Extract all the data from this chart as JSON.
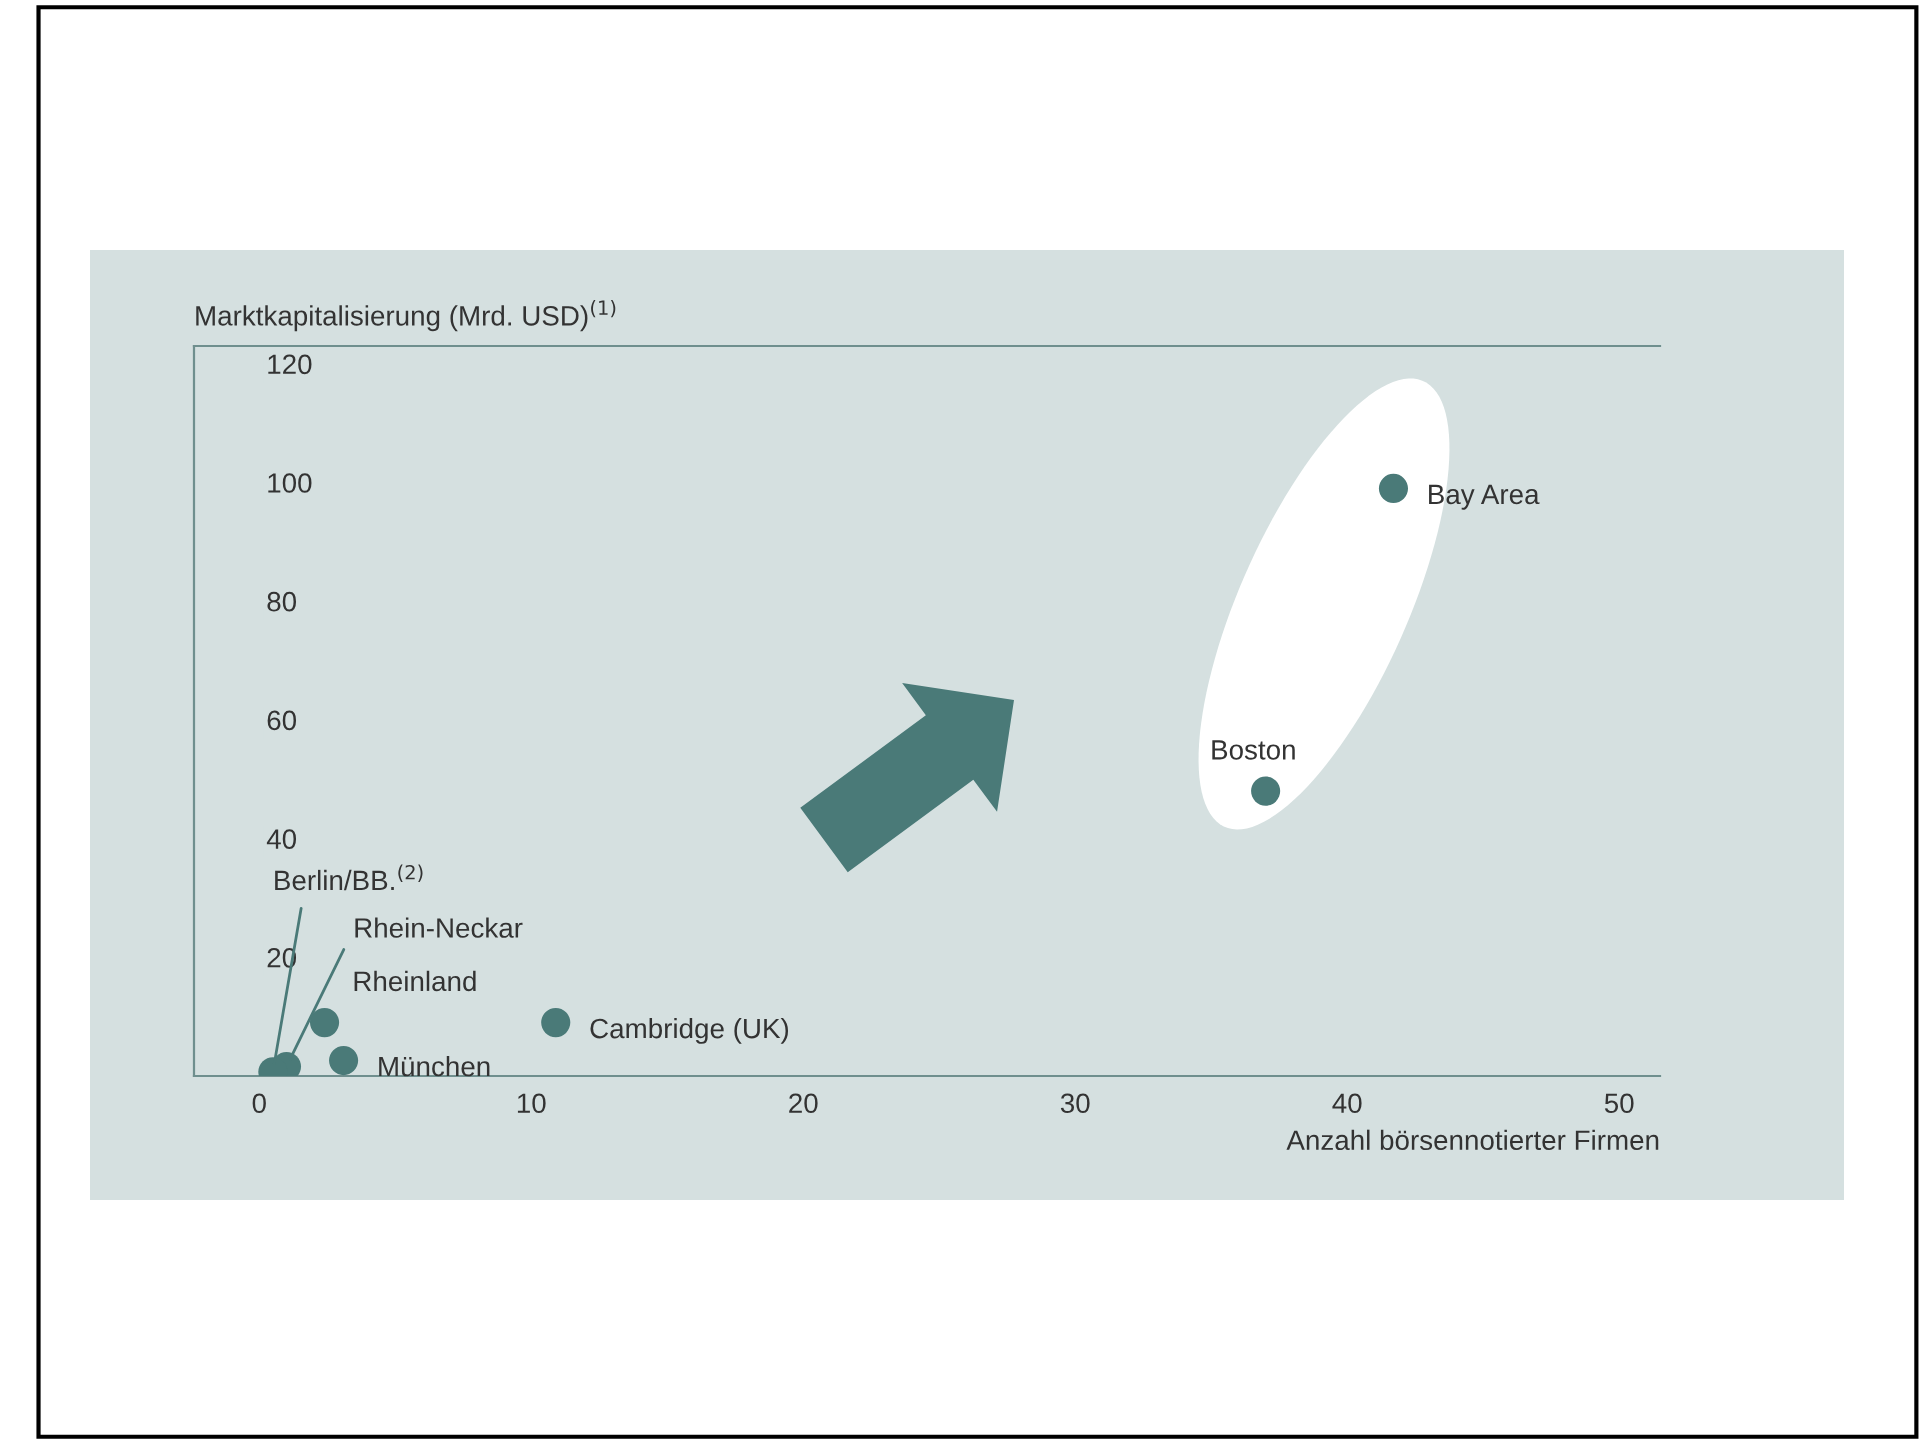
{
  "chart_data": {
    "type": "scatter",
    "xlabel": "Anzahl börsennotierter Firmen",
    "ylabel": "Marktkapitalisierung (Mrd. USD)$^{(1)}$",
    "series": [
      {
        "name": "Bay Area",
        "color": "#4a7a78",
        "x": [
          41.7
        ],
        "values": [
          99
        ]
      },
      {
        "name": "Boston",
        "color": "#4a7a78",
        "x": [
          37
        ],
        "values": [
          48
        ]
      },
      {
        "name": "Cambridge (UK)",
        "color": "#4a7a78",
        "x": [
          10.9
        ],
        "values": [
          9
        ]
      },
      {
        "name": "Rheinland",
        "color": "#4a7a78",
        "x": [
          2.4
        ],
        "values": [
          9
        ]
      },
      {
        "name": "München",
        "color": "#4a7a78",
        "x": [
          3.1
        ],
        "values": [
          2.6
        ]
      },
      {
        "name": "Rhein-Neckar",
        "color": "#4a7a78",
        "x": [
          1.0
        ],
        "values": [
          1.6
        ]
      },
      {
        "name": "Berlin/BB.$^{(2)}$",
        "color": "#4a7a78",
        "x": [
          0.5
        ],
        "values": [
          0.7
        ]
      }
    ],
    "xlim": [
      -2.4,
      51.5
    ],
    "ylim": [
      0,
      123
    ],
    "xticks": [
      0,
      10,
      20,
      30,
      40,
      50
    ],
    "yticks": [
      20,
      40,
      60,
      80,
      100,
      120
    ],
    "marker": "circle",
    "grid": false,
    "legend": false
  }
}
